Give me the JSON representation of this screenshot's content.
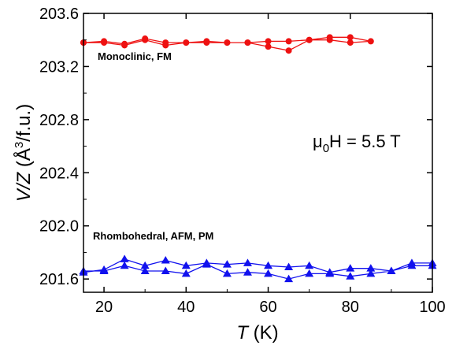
{
  "chart_data": {
    "type": "line",
    "xlabel": {
      "symbol": "T",
      "unit": " (K)"
    },
    "ylabel": {
      "symbol": "V/Z",
      "unit_pre": " (Å",
      "unit_sup": "3",
      "unit_post": "/f.u.)"
    },
    "xlim": [
      15,
      100
    ],
    "ylim": [
      201.5,
      203.6
    ],
    "x_ticks": [
      20,
      40,
      60,
      80,
      100
    ],
    "y_ticks": [
      "201.6",
      "202.0",
      "202.4",
      "202.8",
      "203.2",
      "203.6"
    ],
    "grid": false,
    "annotation": {
      "mu": "μ",
      "sub": "0",
      "rest": "H = 5.5 T"
    },
    "series": [
      {
        "name": "Monoclinic, FM",
        "marker": "circle",
        "color": "#ee1111",
        "x": [
          15,
          20,
          25,
          30,
          35,
          40,
          45,
          50,
          55,
          60,
          65,
          70,
          75,
          80,
          85,
          80,
          75,
          70,
          65,
          60,
          55,
          50,
          45,
          40,
          35,
          30,
          25,
          20,
          15
        ],
        "y": [
          203.38,
          203.38,
          203.36,
          203.4,
          203.36,
          203.38,
          203.38,
          203.38,
          203.38,
          203.35,
          203.32,
          203.4,
          203.4,
          203.38,
          203.39,
          203.42,
          203.42,
          203.4,
          203.39,
          203.39,
          203.38,
          203.38,
          203.39,
          203.38,
          203.38,
          203.41,
          203.37,
          203.39,
          203.38
        ]
      },
      {
        "name": "Rhombohedral, AFM, PM",
        "marker": "triangle",
        "color": "#1111ee",
        "x": [
          15,
          20,
          25,
          30,
          35,
          40,
          45,
          50,
          55,
          60,
          65,
          70,
          75,
          80,
          85,
          90,
          95,
          100,
          100,
          95,
          90,
          85,
          80,
          75,
          70,
          65,
          60,
          55,
          50,
          45,
          40,
          35,
          30,
          25,
          20,
          15
        ],
        "y": [
          201.65,
          201.67,
          201.75,
          201.7,
          201.74,
          201.7,
          201.72,
          201.71,
          201.72,
          201.7,
          201.69,
          201.7,
          201.65,
          201.68,
          201.68,
          201.66,
          201.7,
          201.7,
          201.72,
          201.72,
          201.66,
          201.64,
          201.62,
          201.64,
          201.64,
          201.6,
          201.64,
          201.65,
          201.64,
          201.71,
          201.64,
          201.66,
          201.66,
          201.7,
          201.66,
          201.66
        ]
      }
    ]
  }
}
